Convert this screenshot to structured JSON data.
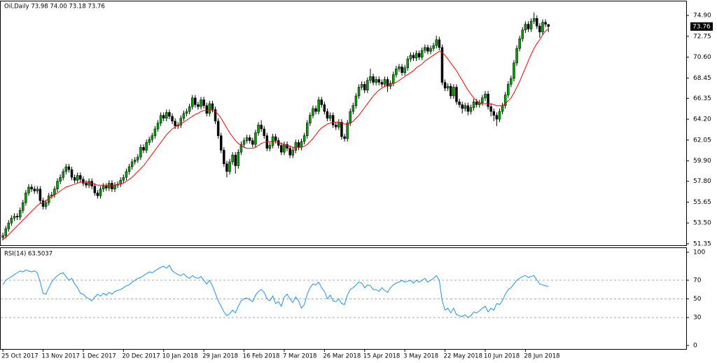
{
  "chart_data": {
    "type": "candlestick",
    "header_label": "Oil,Daily 73.98 74.00 73.18 73.76",
    "last_price_label": "73.76",
    "up_color": "#00a000",
    "down_color": "#000000",
    "wick_color": "#000000",
    "xlim": [
      -1,
      238
    ],
    "xticks": [
      {
        "value": 0,
        "label": "25 Oct 2017"
      },
      {
        "value": 14,
        "label": "13 Nov 2017"
      },
      {
        "value": 28,
        "label": "1 Dec 2017"
      },
      {
        "value": 42,
        "label": "20 Dec 2017"
      },
      {
        "value": 56,
        "label": "10 Jan 2018"
      },
      {
        "value": 70,
        "label": "29 Jan 2018"
      },
      {
        "value": 84,
        "label": "16 Feb 2018"
      },
      {
        "value": 98,
        "label": "7 Mar 2018"
      },
      {
        "value": 112,
        "label": "26 Mar 2018"
      },
      {
        "value": 126,
        "label": "15 Apr 2018"
      },
      {
        "value": 140,
        "label": "3 May 2018"
      },
      {
        "value": 154,
        "label": "22 May 2018"
      },
      {
        "value": 168,
        "label": "10 Jun 2018"
      },
      {
        "value": 182,
        "label": "28 Jun 2018"
      }
    ],
    "ylim": [
      51.2,
      76.35
    ],
    "yticks": [
      {
        "value": 74.9,
        "label": "74.90"
      },
      72.75,
      {
        "value": 70.6,
        "label": "70.60"
      },
      68.45,
      66.35,
      {
        "value": 64.2,
        "label": "64.20"
      },
      {
        "value": 62.05,
        "label": "62.05"
      },
      {
        "value": 59.9,
        "label": "59.90"
      },
      {
        "value": 57.8,
        "label": "57.80"
      },
      55.65,
      {
        "value": 53.5,
        "label": "53.50"
      },
      51.35
    ],
    "open": [
      52.0,
      52.2,
      52.9,
      53.5,
      54.0,
      54.2,
      54.1,
      54.8,
      55.6,
      56.6,
      57.2,
      57.0,
      56.8,
      57.0,
      55.8,
      55.2,
      55.6,
      56.3,
      56.4,
      57.0,
      57.8,
      58.2,
      58.8,
      59.3,
      59.0,
      58.2,
      57.9,
      58.4,
      58.0,
      57.6,
      57.4,
      57.8,
      57.3,
      56.6,
      56.3,
      57.0,
      57.3,
      57.1,
      57.6,
      57.0,
      57.4,
      57.5,
      57.9,
      58.2,
      58.8,
      59.3,
      59.8,
      60.0,
      60.3,
      61.3,
      61.0,
      61.8,
      62.1,
      62.5,
      63.2,
      63.8,
      64.6,
      64.3,
      64.9,
      64.5,
      64.0,
      63.5,
      63.6,
      64.3,
      64.8,
      65.0,
      65.5,
      66.4,
      65.7,
      65.5,
      66.2,
      65.6,
      64.8,
      65.8,
      65.2,
      64.0,
      62.5,
      61.0,
      59.6,
      58.8,
      59.8,
      60.5,
      59.4,
      60.8,
      61.6,
      62.0,
      62.3,
      62.0,
      61.6,
      62.8,
      63.6,
      63.2,
      62.5,
      61.2,
      61.5,
      62.4,
      62.0,
      61.5,
      60.8,
      61.6,
      61.2,
      60.5,
      61.0,
      61.8,
      61.3,
      61.9,
      62.5,
      63.8,
      64.6,
      65.3,
      65.0,
      66.2,
      65.7,
      65.0,
      64.3,
      64.6,
      63.6,
      63.4,
      63.9,
      62.4,
      62.2,
      63.8,
      65.0,
      65.6,
      66.6,
      67.5,
      67.8,
      67.2,
      68.2,
      68.6,
      68.0,
      68.3,
      68.0,
      67.8,
      68.3,
      67.6,
      67.9,
      68.8,
      69.4,
      69.6,
      69.0,
      69.5,
      70.4,
      70.8,
      70.5,
      71.0,
      70.6,
      71.3,
      71.6,
      71.2,
      71.5,
      71.8,
      72.4,
      71.6,
      68.0,
      67.4,
      67.6,
      66.6,
      67.5,
      66.0,
      65.7,
      65.3,
      65.6,
      65.0,
      65.4,
      66.0,
      65.7,
      65.9,
      66.4,
      66.8,
      65.5,
      65.0,
      64.6,
      64.2,
      65.0,
      65.6,
      66.7,
      67.8,
      68.4,
      70.0,
      71.5,
      72.5,
      73.4,
      74.0,
      73.5,
      74.3,
      74.6,
      73.8,
      73.2,
      74.2,
      73.98
    ],
    "high": [
      52.5,
      53.2,
      53.8,
      54.3,
      54.5,
      54.5,
      55.1,
      55.9,
      56.9,
      57.5,
      57.5,
      57.3,
      57.3,
      57.3,
      56.1,
      55.9,
      56.6,
      56.7,
      57.3,
      58.1,
      58.5,
      59.1,
      59.6,
      59.6,
      59.3,
      58.5,
      58.7,
      58.7,
      58.3,
      57.9,
      58.1,
      58.1,
      57.6,
      56.9,
      57.3,
      57.6,
      57.6,
      57.9,
      57.9,
      57.7,
      57.8,
      58.2,
      58.5,
      59.1,
      59.6,
      60.1,
      60.3,
      60.6,
      61.6,
      61.6,
      62.1,
      62.4,
      62.8,
      63.5,
      64.1,
      64.9,
      64.9,
      65.2,
      65.2,
      64.8,
      64.3,
      63.9,
      64.6,
      65.1,
      65.3,
      65.8,
      66.7,
      66.7,
      66.0,
      66.5,
      66.5,
      65.9,
      66.1,
      66.1,
      65.5,
      64.3,
      62.8,
      61.3,
      59.9,
      60.1,
      60.8,
      60.8,
      61.1,
      61.9,
      62.3,
      62.6,
      62.6,
      62.3,
      63.1,
      63.9,
      64.1,
      63.5,
      62.8,
      61.8,
      62.7,
      62.7,
      62.3,
      61.8,
      61.9,
      61.9,
      61.5,
      61.3,
      62.1,
      62.1,
      62.2,
      62.8,
      64.1,
      64.9,
      65.6,
      65.6,
      66.5,
      66.5,
      66.0,
      65.3,
      64.9,
      64.9,
      63.9,
      64.2,
      64.2,
      62.7,
      64.1,
      65.3,
      65.9,
      66.9,
      67.8,
      68.1,
      68.1,
      68.5,
      69.4,
      68.9,
      68.6,
      68.6,
      68.3,
      68.6,
      68.6,
      68.2,
      69.1,
      69.7,
      69.9,
      69.9,
      69.8,
      70.7,
      71.1,
      71.1,
      71.3,
      71.3,
      71.6,
      71.9,
      71.9,
      71.8,
      72.1,
      72.8,
      72.7,
      71.9,
      68.3,
      67.9,
      67.9,
      67.8,
      67.8,
      66.3,
      66.0,
      65.9,
      65.9,
      65.7,
      66.3,
      66.3,
      66.2,
      66.7,
      67.1,
      67.1,
      65.8,
      65.3,
      64.9,
      65.3,
      65.9,
      67.0,
      68.1,
      68.7,
      70.3,
      71.8,
      72.8,
      73.7,
      74.3,
      74.3,
      74.6,
      75.2,
      74.9,
      74.1,
      74.5,
      74.5,
      74.0
    ],
    "low": [
      51.7,
      51.9,
      52.6,
      53.2,
      53.7,
      53.8,
      53.8,
      54.5,
      55.3,
      56.3,
      56.7,
      56.5,
      56.5,
      55.5,
      54.9,
      54.9,
      55.3,
      56.0,
      56.1,
      56.7,
      57.5,
      57.9,
      58.5,
      58.7,
      57.9,
      57.6,
      57.6,
      57.7,
      57.3,
      57.1,
      57.1,
      57.0,
      56.3,
      56.0,
      56.0,
      56.7,
      56.8,
      56.8,
      56.7,
      56.7,
      57.1,
      57.2,
      57.6,
      57.9,
      58.5,
      59.0,
      59.5,
      59.7,
      60.0,
      60.7,
      60.7,
      61.5,
      61.8,
      62.2,
      62.9,
      63.5,
      64.0,
      64.0,
      64.2,
      63.7,
      63.2,
      63.2,
      63.3,
      64.0,
      64.5,
      64.7,
      65.2,
      65.4,
      65.2,
      65.2,
      65.3,
      64.5,
      64.5,
      64.9,
      63.7,
      62.2,
      60.7,
      59.3,
      58.2,
      58.5,
      59.5,
      58.6,
      59.1,
      60.5,
      61.3,
      61.7,
      61.7,
      61.3,
      61.3,
      62.5,
      62.9,
      62.2,
      60.9,
      60.9,
      61.2,
      61.7,
      61.2,
      60.5,
      60.5,
      60.9,
      60.2,
      60.2,
      60.7,
      61.0,
      61.0,
      61.6,
      62.2,
      63.5,
      64.3,
      64.7,
      64.7,
      65.4,
      64.7,
      64.0,
      64.0,
      63.3,
      63.1,
      63.1,
      62.1,
      61.9,
      61.9,
      63.5,
      64.7,
      65.3,
      66.3,
      67.2,
      66.9,
      66.9,
      67.9,
      67.7,
      67.7,
      67.7,
      67.5,
      67.5,
      67.0,
      67.3,
      67.6,
      68.5,
      69.1,
      68.7,
      68.7,
      69.2,
      70.1,
      70.2,
      70.2,
      70.3,
      70.3,
      71.0,
      70.9,
      70.9,
      71.2,
      71.5,
      71.3,
      67.7,
      67.1,
      67.1,
      66.3,
      66.3,
      65.7,
      65.4,
      64.8,
      65.0,
      64.6,
      64.7,
      65.1,
      65.4,
      65.4,
      65.6,
      66.1,
      65.2,
      64.5,
      64.0,
      63.5,
      63.9,
      64.7,
      65.3,
      66.4,
      67.5,
      68.1,
      69.7,
      71.2,
      72.2,
      73.1,
      73.2,
      73.2,
      74.0,
      73.5,
      72.6,
      72.9,
      73.7,
      73.18
    ],
    "close": [
      52.2,
      52.9,
      53.5,
      54.0,
      54.2,
      54.1,
      54.8,
      55.6,
      56.6,
      57.2,
      57.0,
      56.8,
      57.0,
      55.8,
      55.2,
      55.6,
      56.3,
      56.4,
      57.0,
      57.8,
      58.2,
      58.8,
      59.3,
      59.0,
      58.2,
      57.9,
      58.4,
      58.0,
      57.6,
      57.4,
      57.8,
      57.3,
      56.6,
      56.3,
      57.0,
      57.3,
      57.1,
      57.6,
      57.0,
      57.4,
      57.5,
      57.9,
      58.2,
      58.8,
      59.3,
      59.8,
      60.0,
      60.3,
      61.3,
      61.0,
      61.8,
      62.1,
      62.5,
      63.2,
      63.8,
      64.6,
      64.3,
      64.9,
      64.5,
      64.0,
      63.5,
      63.6,
      64.3,
      64.8,
      65.0,
      65.5,
      66.4,
      65.7,
      65.5,
      66.2,
      65.6,
      64.8,
      65.8,
      65.2,
      64.0,
      62.5,
      61.0,
      59.6,
      58.8,
      59.8,
      60.5,
      59.4,
      60.8,
      61.6,
      62.0,
      62.3,
      62.0,
      61.6,
      62.8,
      63.6,
      63.2,
      62.5,
      61.2,
      61.5,
      62.4,
      62.0,
      61.5,
      60.8,
      61.6,
      61.2,
      60.5,
      61.0,
      61.8,
      61.3,
      61.9,
      62.5,
      63.8,
      64.6,
      65.3,
      65.0,
      66.2,
      65.7,
      65.0,
      64.3,
      64.6,
      63.6,
      63.4,
      63.9,
      62.4,
      62.2,
      63.8,
      65.0,
      65.6,
      66.6,
      67.5,
      67.8,
      67.2,
      68.2,
      68.6,
      68.0,
      68.3,
      68.0,
      67.8,
      68.3,
      67.6,
      67.9,
      68.8,
      69.4,
      69.6,
      69.0,
      69.5,
      70.4,
      70.8,
      70.5,
      71.0,
      70.6,
      71.3,
      71.6,
      71.2,
      71.5,
      71.8,
      72.4,
      71.6,
      68.0,
      67.4,
      67.6,
      66.6,
      67.5,
      66.0,
      65.7,
      65.3,
      65.6,
      65.0,
      65.4,
      66.0,
      65.7,
      65.9,
      66.4,
      66.8,
      65.5,
      65.0,
      64.6,
      64.2,
      65.0,
      65.6,
      66.7,
      67.8,
      68.4,
      70.0,
      71.5,
      72.5,
      73.4,
      74.0,
      73.5,
      74.3,
      74.6,
      73.8,
      73.2,
      74.2,
      74.0,
      73.76
    ],
    "ma": {
      "color": "#ff0000",
      "values": [
        51.8,
        52.0,
        52.3,
        52.6,
        52.9,
        53.2,
        53.5,
        53.8,
        54.1,
        54.4,
        54.7,
        55.0,
        55.3,
        55.5,
        55.6,
        55.8,
        56.0,
        56.2,
        56.4,
        56.6,
        56.8,
        57.0,
        57.2,
        57.3,
        57.4,
        57.5,
        57.6,
        57.7,
        57.7,
        57.7,
        57.7,
        57.6,
        57.5,
        57.4,
        57.4,
        57.4,
        57.4,
        57.4,
        57.4,
        57.4,
        57.5,
        57.5,
        57.6,
        57.8,
        58.0,
        58.2,
        58.5,
        58.8,
        59.1,
        59.4,
        59.8,
        60.2,
        60.6,
        61.0,
        61.4,
        61.8,
        62.2,
        62.6,
        62.9,
        63.2,
        63.4,
        63.6,
        63.7,
        63.9,
        64.1,
        64.3,
        64.5,
        64.7,
        64.8,
        65.0,
        65.1,
        65.1,
        65.2,
        65.1,
        65.0,
        64.7,
        64.3,
        63.8,
        63.3,
        62.8,
        62.4,
        62.0,
        61.7,
        61.5,
        61.3,
        61.2,
        61.2,
        61.2,
        61.3,
        61.5,
        61.7,
        61.8,
        61.9,
        61.9,
        61.9,
        61.9,
        61.8,
        61.7,
        61.6,
        61.5,
        61.4,
        61.3,
        61.3,
        61.3,
        61.3,
        61.4,
        61.6,
        61.9,
        62.2,
        62.6,
        63.0,
        63.3,
        63.5,
        63.7,
        63.8,
        63.9,
        63.9,
        63.9,
        63.8,
        63.7,
        63.7,
        63.8,
        64.0,
        64.3,
        64.6,
        65.0,
        65.4,
        65.8,
        66.2,
        66.6,
        66.9,
        67.2,
        67.4,
        67.6,
        67.7,
        67.8,
        67.9,
        68.0,
        68.2,
        68.4,
        68.6,
        68.8,
        69.0,
        69.2,
        69.5,
        69.7,
        69.9,
        70.2,
        70.4,
        70.6,
        70.8,
        71.0,
        71.2,
        71.1,
        70.8,
        70.4,
        70.0,
        69.6,
        69.2,
        68.7,
        68.2,
        67.7,
        67.2,
        66.8,
        66.4,
        66.1,
        65.9,
        65.8,
        65.8,
        65.8,
        65.8,
        65.7,
        65.6,
        65.6,
        65.6,
        65.8,
        66.1,
        66.4,
        66.9,
        67.5,
        68.1,
        68.8,
        69.5,
        70.2,
        70.9,
        71.5,
        72.0,
        72.4,
        72.9,
        73.3,
        73.5
      ]
    },
    "rsi": {
      "label": "RSI(14) 63.5037",
      "color": "#1e90ff",
      "ylim": [
        0,
        100
      ],
      "yticks": [
        100,
        70,
        50,
        30,
        0
      ],
      "values": [
        65,
        70,
        72,
        74,
        76,
        78,
        80,
        79,
        81,
        80,
        79,
        80,
        78,
        68,
        56,
        55,
        62,
        68,
        72,
        75,
        77,
        78,
        74,
        70,
        72,
        66,
        62,
        56,
        55,
        52,
        50,
        48,
        52,
        55,
        53,
        56,
        54,
        57,
        55,
        58,
        59,
        60,
        62,
        64,
        65,
        68,
        70,
        72,
        73,
        75,
        77,
        79,
        78,
        80,
        82,
        84,
        85,
        83,
        86,
        80,
        78,
        76,
        75,
        77,
        74,
        72,
        75,
        73,
        72,
        74,
        70,
        66,
        70,
        64,
        56,
        48,
        42,
        36,
        32,
        34,
        38,
        35,
        42,
        48,
        50,
        51,
        49,
        47,
        54,
        58,
        60,
        57,
        50,
        48,
        53,
        45,
        47,
        42,
        52,
        55,
        50,
        46,
        52,
        48,
        40,
        44,
        55,
        62,
        66,
        65,
        68,
        62,
        58,
        50,
        54,
        48,
        47,
        50,
        45,
        44,
        54,
        60,
        62,
        65,
        68,
        67,
        62,
        65,
        64,
        60,
        60,
        58,
        62,
        59,
        57,
        62,
        65,
        67,
        68,
        70,
        68,
        69,
        70,
        67,
        70,
        68,
        70,
        72,
        68,
        70,
        72,
        75,
        70,
        48,
        38,
        40,
        35,
        40,
        33,
        32,
        31,
        33,
        30,
        32,
        36,
        35,
        37,
        40,
        42,
        36,
        40,
        38,
        45,
        44,
        48,
        55,
        60,
        62,
        66,
        70,
        72,
        74,
        75,
        73,
        74,
        75,
        70,
        66,
        65,
        64,
        63.5037
      ]
    }
  }
}
